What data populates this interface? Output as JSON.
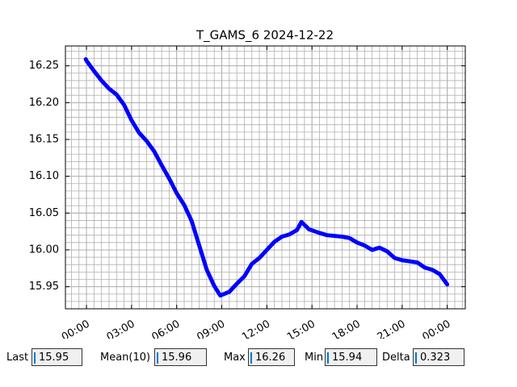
{
  "chart_data": {
    "type": "line",
    "title": "T_GAMS_6 2024-12-22",
    "x": [
      -0.05,
      0,
      0.5,
      1,
      1.5,
      2,
      2.5,
      3,
      3.5,
      4,
      4.5,
      5,
      5.5,
      6,
      6.5,
      7,
      7.5,
      8,
      8.5,
      8.9,
      9.5,
      10,
      10.5,
      11,
      11.5,
      12,
      12.5,
      13,
      13.5,
      14,
      14.3,
      14.8,
      15.5,
      16,
      17,
      17.5,
      18,
      18.5,
      19,
      19.5,
      20,
      20.5,
      21,
      22,
      22.5,
      23,
      23.5,
      24
    ],
    "series": [
      {
        "color": "#0000ff",
        "values": [
          16.259,
          16.257,
          16.243,
          16.23,
          16.219,
          16.211,
          16.197,
          16.176,
          16.159,
          16.148,
          16.134,
          16.115,
          16.097,
          16.077,
          16.061,
          16.039,
          16.006,
          15.973,
          15.951,
          15.938,
          15.943,
          15.954,
          15.964,
          15.981,
          15.989,
          16.0,
          16.011,
          16.018,
          16.021,
          16.027,
          16.038,
          16.028,
          16.023,
          16.02,
          16.018,
          16.016,
          16.01,
          16.006,
          16.0,
          16.003,
          15.998,
          15.989,
          15.986,
          15.983,
          15.976,
          15.973,
          15.967,
          15.953
        ]
      }
    ],
    "xlim": [
      -1.4,
      25.2
    ],
    "xticks": [
      {
        "value": 0,
        "label": "00:00"
      },
      {
        "value": 3,
        "label": "03:00"
      },
      {
        "value": 6,
        "label": "06:00"
      },
      {
        "value": 9,
        "label": "09:00"
      },
      {
        "value": 12,
        "label": "12:00"
      },
      {
        "value": 15,
        "label": "15:00"
      },
      {
        "value": 18,
        "label": "18:00"
      },
      {
        "value": 21,
        "label": "21:00"
      },
      {
        "value": 24,
        "label": "00:00"
      }
    ],
    "ylim": [
      15.92,
      16.277
    ],
    "yticks": [
      15.95,
      {
        "value": 16.0,
        "label": "16.00"
      },
      16.05,
      {
        "value": 16.1,
        "label": "16.10"
      },
      16.15,
      {
        "value": 16.2,
        "label": "16.20"
      },
      16.25
    ],
    "grid": true,
    "xminor_step": 0.5,
    "yminor_step": 0.01
  },
  "status": [
    {
      "label": "Last",
      "value": 15.95
    },
    {
      "label": "Mean(10)",
      "value": 15.96
    },
    {
      "label": "Max",
      "value": 16.26
    },
    {
      "label": "Min",
      "value": 15.94
    },
    {
      "label": "Delta",
      "value": 0.323
    }
  ]
}
